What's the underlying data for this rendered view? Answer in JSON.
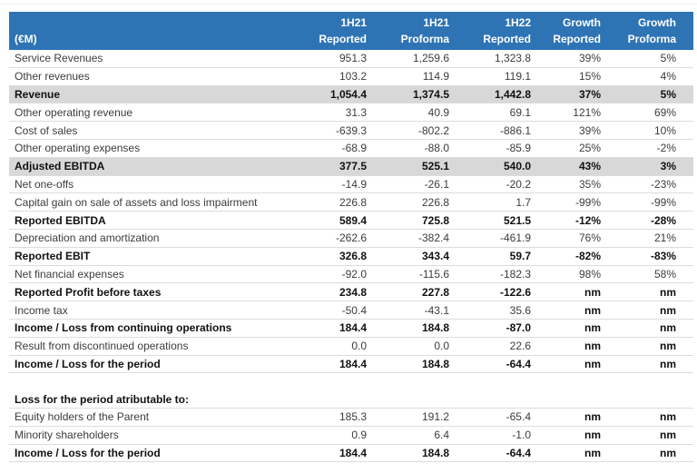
{
  "page": {
    "accent_blue": "#2e74b5",
    "band_gray": "#d8d8d8",
    "divider_gray": "#efefef"
  },
  "table": {
    "unit_label": "(€M)",
    "columns": [
      {
        "period": "1H21",
        "basis": "Reported"
      },
      {
        "period": "1H21",
        "basis": "Proforma"
      },
      {
        "period": "1H22",
        "basis": "Reported"
      },
      {
        "period": "Growth",
        "basis": "Reported"
      },
      {
        "period": "Growth",
        "basis": "Proforma"
      }
    ],
    "rows": [
      {
        "label": "Service Revenues",
        "values": [
          "951.3",
          "1,259.6",
          "1,323.8",
          "39%",
          "5%"
        ],
        "bold": false,
        "band": false,
        "blank": false
      },
      {
        "label": "Other revenues",
        "values": [
          "103.2",
          "114.9",
          "119.1",
          "15%",
          "4%"
        ],
        "bold": false,
        "band": false,
        "blank": false
      },
      {
        "label": "Revenue",
        "values": [
          "1,054.4",
          "1,374.5",
          "1,442.8",
          "37%",
          "5%"
        ],
        "bold": true,
        "band": true,
        "blank": false
      },
      {
        "label": "Other operating revenue",
        "values": [
          "31.3",
          "40.9",
          "69.1",
          "121%",
          "69%"
        ],
        "bold": false,
        "band": false,
        "blank": false
      },
      {
        "label": "Cost of sales",
        "values": [
          "-639.3",
          "-802.2",
          "-886.1",
          "39%",
          "10%"
        ],
        "bold": false,
        "band": false,
        "blank": false
      },
      {
        "label": "Other operating expenses",
        "values": [
          "-68.9",
          "-88.0",
          "-85.9",
          "25%",
          "-2%"
        ],
        "bold": false,
        "band": false,
        "blank": false
      },
      {
        "label": "Adjusted EBITDA",
        "values": [
          "377.5",
          "525.1",
          "540.0",
          "43%",
          "3%"
        ],
        "bold": true,
        "band": true,
        "blank": false
      },
      {
        "label": "Net one-offs",
        "values": [
          "-14.9",
          "-26.1",
          "-20.2",
          "35%",
          "-23%"
        ],
        "bold": false,
        "band": false,
        "blank": false
      },
      {
        "label": "Capital gain on sale of assets and loss impairment",
        "values": [
          "226.8",
          "226.8",
          "1.7",
          "-99%",
          "-99%"
        ],
        "bold": false,
        "band": false,
        "blank": false
      },
      {
        "label": "Reported EBITDA",
        "values": [
          "589.4",
          "725.8",
          "521.5",
          "-12%",
          "-28%"
        ],
        "bold": true,
        "band": false,
        "blank": false
      },
      {
        "label": "Depreciation and amortization",
        "values": [
          "-262.6",
          "-382.4",
          "-461.9",
          "76%",
          "21%"
        ],
        "bold": false,
        "band": false,
        "blank": false
      },
      {
        "label": "Reported EBIT",
        "values": [
          "326.8",
          "343.4",
          "59.7",
          "-82%",
          "-83%"
        ],
        "bold": true,
        "band": false,
        "blank": false
      },
      {
        "label": "Net financial expenses",
        "values": [
          "-92.0",
          "-115.6",
          "-182.3",
          "98%",
          "58%"
        ],
        "bold": false,
        "band": false,
        "blank": false
      },
      {
        "label": "Reported Profit before taxes",
        "values": [
          "234.8",
          "227.8",
          "-122.6",
          "nm",
          "nm"
        ],
        "bold": true,
        "band": false,
        "blank": false
      },
      {
        "label": "Income tax",
        "values": [
          "-50.4",
          "-43.1",
          "35.6",
          "nm",
          "nm"
        ],
        "bold": false,
        "band": false,
        "blank": false
      },
      {
        "label": "Income / Loss from continuing operations",
        "values": [
          "184.4",
          "184.8",
          "-87.0",
          "nm",
          "nm"
        ],
        "bold": true,
        "band": false,
        "blank": false
      },
      {
        "label": "Result from discontinued operations",
        "values": [
          "0.0",
          "0.0",
          "22.6",
          "nm",
          "nm"
        ],
        "bold": false,
        "band": false,
        "blank": false
      },
      {
        "label": "Income / Loss for the period",
        "values": [
          "184.4",
          "184.8",
          "-64.4",
          "nm",
          "nm"
        ],
        "bold": true,
        "band": false,
        "blank": false
      },
      {
        "label": "",
        "values": [
          "",
          "",
          "",
          "",
          ""
        ],
        "bold": false,
        "band": false,
        "blank": true
      },
      {
        "label": "Loss for the period atributable to:",
        "values": [
          "",
          "",
          "",
          "",
          ""
        ],
        "bold": true,
        "band": false,
        "blank": false
      },
      {
        "label": "Equity holders of the Parent",
        "values": [
          "185.3",
          "191.2",
          "-65.4",
          "nm",
          "nm"
        ],
        "bold": false,
        "band": false,
        "blank": false
      },
      {
        "label": "Minority shareholders",
        "values": [
          "0.9",
          "6.4",
          "-1.0",
          "nm",
          "nm"
        ],
        "bold": false,
        "band": false,
        "blank": false
      },
      {
        "label": "Income / Loss for the period",
        "values": [
          "184.4",
          "184.8",
          "-64.4",
          "nm",
          "nm"
        ],
        "bold": true,
        "band": false,
        "blank": false
      }
    ]
  }
}
